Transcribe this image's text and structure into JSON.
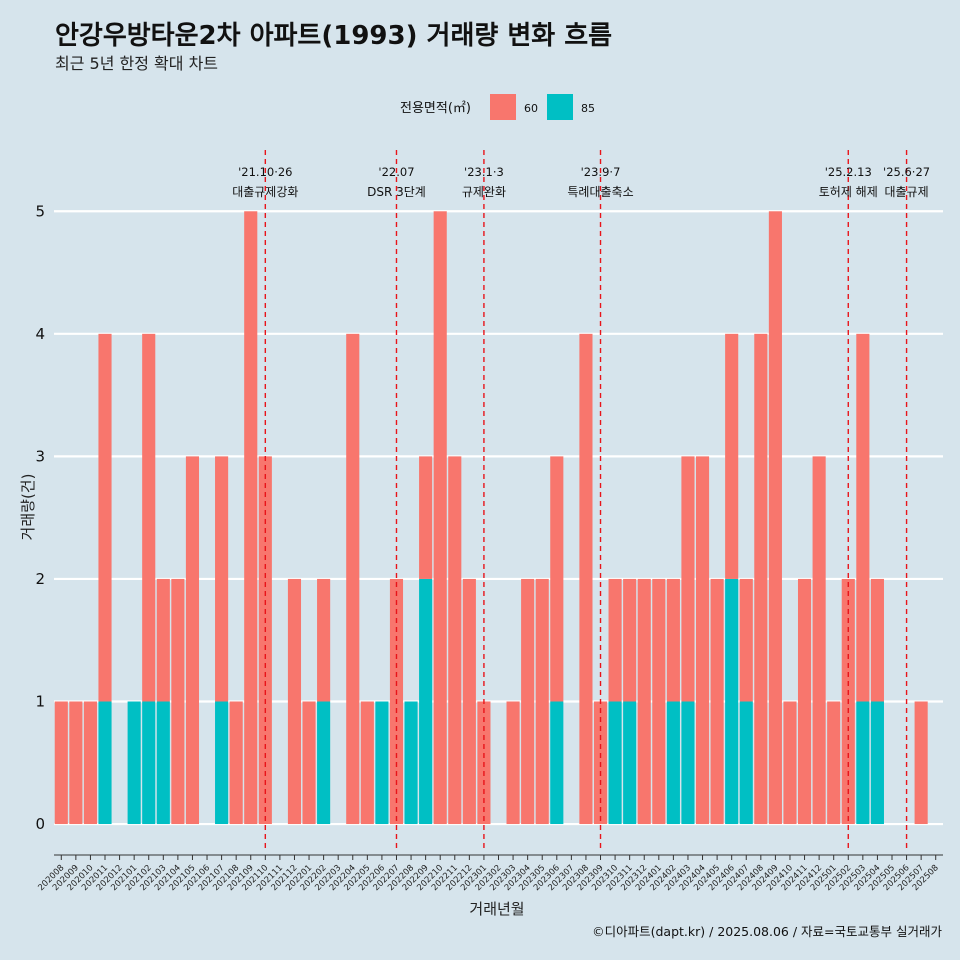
{
  "chart_data": {
    "type": "bar",
    "title": "안강우방타운2차 아파트(1993) 거래량 변화 흐름",
    "subtitle": "최근 5년 한정 확대 차트",
    "xlabel": "거래년월",
    "ylabel": "거래량(건)",
    "ylim": [
      -0.22,
      5.5
    ],
    "yticks": [
      0,
      1,
      2,
      3,
      4,
      5
    ],
    "caption": "©디아파트(dapt.kr) / 2025.08.06 / 자료=국토교통부 실거래가",
    "legend": {
      "title": "전용면적(㎡)",
      "position": "top",
      "entries": [
        {
          "name": "60",
          "color": "#f8766d"
        },
        {
          "name": "85",
          "color": "#00bfc4"
        }
      ]
    },
    "categories": [
      "202008",
      "202009",
      "202010",
      "202011",
      "202012",
      "202101",
      "202102",
      "202103",
      "202104",
      "202105",
      "202106",
      "202107",
      "202108",
      "202109",
      "202110",
      "202111",
      "202112",
      "202201",
      "202202",
      "202203",
      "202204",
      "202205",
      "202206",
      "202207",
      "202208",
      "202209",
      "202210",
      "202211",
      "202212",
      "202301",
      "202302",
      "202303",
      "202304",
      "202305",
      "202306",
      "202307",
      "202308",
      "202309",
      "202310",
      "202311",
      "202312",
      "202401",
      "202402",
      "202403",
      "202404",
      "202405",
      "202406",
      "202407",
      "202408",
      "202409",
      "202410",
      "202411",
      "202412",
      "202501",
      "202502",
      "202503",
      "202504",
      "202505",
      "202506",
      "202507",
      "202508"
    ],
    "series": [
      {
        "name": "60",
        "color": "#f8766d",
        "values": [
          1,
          1,
          1,
          3,
          0,
          0,
          3,
          1,
          2,
          3,
          0,
          2,
          1,
          5,
          3,
          0,
          2,
          1,
          1,
          0,
          4,
          1,
          0,
          2,
          0,
          1,
          5,
          3,
          2,
          1,
          0,
          1,
          2,
          2,
          2,
          0,
          4,
          1,
          1,
          1,
          2,
          2,
          1,
          2,
          3,
          2,
          2,
          1,
          4,
          5,
          1,
          2,
          3,
          1,
          2,
          3,
          1,
          0,
          0,
          1,
          0
        ]
      },
      {
        "name": "85",
        "color": "#00bfc4",
        "values": [
          0,
          0,
          0,
          1,
          0,
          1,
          1,
          1,
          0,
          0,
          0,
          1,
          0,
          0,
          0,
          0,
          0,
          0,
          1,
          0,
          0,
          0,
          1,
          0,
          1,
          2,
          0,
          0,
          0,
          0,
          0,
          0,
          0,
          0,
          1,
          0,
          0,
          0,
          1,
          1,
          0,
          0,
          1,
          1,
          0,
          0,
          2,
          1,
          0,
          0,
          0,
          0,
          0,
          0,
          0,
          1,
          1,
          0,
          0,
          0,
          0
        ]
      }
    ],
    "annotations": [
      {
        "at": "202110",
        "date": "'21.10·26",
        "text": "대출규제강화"
      },
      {
        "at": "202207",
        "date": "'22.07",
        "text": "DSR 3단계"
      },
      {
        "at": "202301",
        "date": "'23.1·3",
        "text": "규제완화"
      },
      {
        "at": "202309",
        "date": "'23.9·7",
        "text": "특례대출축소"
      },
      {
        "at": "202502",
        "date": "'25.2.13",
        "text": "토허제 해제"
      },
      {
        "at": "202506",
        "date": "'25.6·27",
        "text": "대출규제"
      }
    ]
  }
}
